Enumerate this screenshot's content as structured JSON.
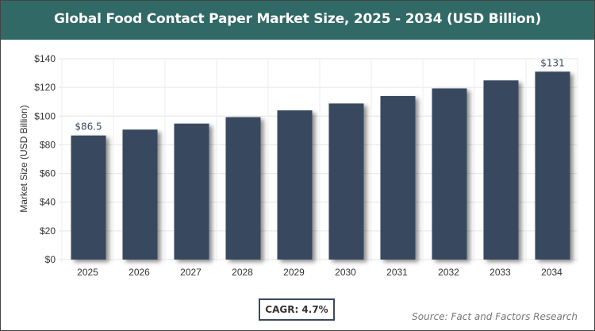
{
  "header": {
    "title": "Global Food Contact Paper Market Size, 2025 - 2034 (USD Billion)"
  },
  "chart_data": {
    "type": "bar",
    "title": "Global Food Contact Paper Market Size, 2025 - 2034 (USD Billion)",
    "categories": [
      "2025",
      "2026",
      "2027",
      "2028",
      "2029",
      "2030",
      "2031",
      "2032",
      "2033",
      "2034"
    ],
    "values": [
      86.5,
      90.6,
      94.8,
      99.3,
      104.0,
      108.8,
      114.0,
      119.3,
      124.9,
      131
    ],
    "data_labels": {
      "0": "$86.5",
      "9": "$131"
    },
    "xlabel": "",
    "ylabel": "Market Size (USD Billion)",
    "ylim": [
      0,
      140
    ],
    "yticks": [
      0,
      20,
      40,
      60,
      80,
      100,
      120,
      140
    ],
    "ytick_labels": [
      "$0",
      "$20",
      "$40",
      "$60",
      "$80",
      "$100",
      "$120",
      "$140"
    ],
    "grid": true,
    "bar_color": "#374a5f"
  },
  "footer": {
    "cagr": "CAGR: 4.7%",
    "source": "Source: Fact and Factors Research"
  }
}
